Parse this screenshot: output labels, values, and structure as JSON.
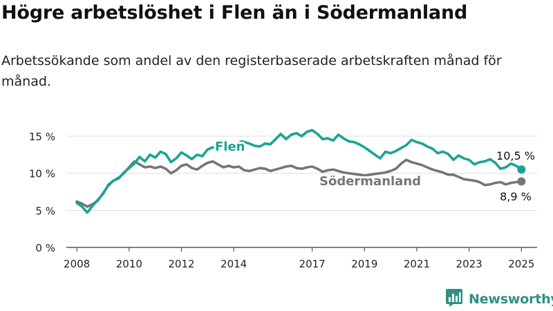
{
  "title": "Högre arbetslöshet i Flen än i Södermanland",
  "subtitle": "Arbetssökande som andel av den registerbaserade arbetskraften månad för månad.",
  "brand": {
    "name": "Newsworthy",
    "icon": "bar-chart-logo-icon"
  },
  "colors": {
    "flen": "#1aa397",
    "sodermanland": "#757575",
    "grid": "#dddddd"
  },
  "chart_data": {
    "type": "line",
    "title": "Högre arbetslöshet i Flen än i Södermanland",
    "ylim": [
      0,
      15
    ],
    "yticks": [
      0,
      5,
      10,
      15
    ],
    "ytick_labels": [
      "0 %",
      "5 %",
      "10 %",
      "15 %"
    ],
    "xlim": [
      2007.6,
      2025.6
    ],
    "xticks": [
      2008,
      2010,
      2012,
      2014,
      2017,
      2019,
      2021,
      2023,
      2025
    ],
    "xtick_labels": [
      "2008",
      "2010",
      "2012",
      "2014",
      "2017",
      "2019",
      "2021",
      "2023",
      "2025"
    ],
    "grid": true,
    "series": [
      {
        "name": "Flen",
        "color": "#1aa397",
        "end_label": "10,5 %",
        "points": [
          [
            2008.0,
            6.0
          ],
          [
            2008.2,
            5.5
          ],
          [
            2008.4,
            4.7
          ],
          [
            2008.6,
            5.6
          ],
          [
            2008.8,
            6.4
          ],
          [
            2009.0,
            7.2
          ],
          [
            2009.2,
            8.4
          ],
          [
            2009.4,
            9.0
          ],
          [
            2009.6,
            9.3
          ],
          [
            2009.8,
            10.1
          ],
          [
            2010.0,
            10.7
          ],
          [
            2010.2,
            11.3
          ],
          [
            2010.4,
            12.2
          ],
          [
            2010.6,
            11.6
          ],
          [
            2010.8,
            12.5
          ],
          [
            2011.0,
            12.1
          ],
          [
            2011.2,
            12.9
          ],
          [
            2011.4,
            12.6
          ],
          [
            2011.6,
            11.5
          ],
          [
            2011.8,
            12.0
          ],
          [
            2012.0,
            12.8
          ],
          [
            2012.2,
            12.4
          ],
          [
            2012.4,
            11.9
          ],
          [
            2012.6,
            12.5
          ],
          [
            2012.8,
            12.3
          ],
          [
            2013.0,
            13.2
          ],
          [
            2013.2,
            13.5
          ],
          [
            2013.4,
            13.2
          ],
          [
            2013.7,
            13.8
          ],
          [
            2014.0,
            13.7
          ],
          [
            2014.3,
            14.3
          ],
          [
            2014.6,
            14.0
          ],
          [
            2014.8,
            13.7
          ],
          [
            2015.0,
            13.6
          ],
          [
            2015.2,
            14.0
          ],
          [
            2015.4,
            13.9
          ],
          [
            2015.6,
            14.6
          ],
          [
            2015.8,
            15.3
          ],
          [
            2016.0,
            14.6
          ],
          [
            2016.2,
            15.2
          ],
          [
            2016.4,
            15.4
          ],
          [
            2016.6,
            15.0
          ],
          [
            2016.8,
            15.6
          ],
          [
            2017.0,
            15.8
          ],
          [
            2017.2,
            15.3
          ],
          [
            2017.4,
            14.6
          ],
          [
            2017.6,
            14.7
          ],
          [
            2017.8,
            14.4
          ],
          [
            2018.0,
            15.2
          ],
          [
            2018.2,
            14.7
          ],
          [
            2018.4,
            14.3
          ],
          [
            2018.6,
            14.2
          ],
          [
            2018.8,
            13.9
          ],
          [
            2019.0,
            13.5
          ],
          [
            2019.2,
            13.0
          ],
          [
            2019.4,
            12.5
          ],
          [
            2019.6,
            12.0
          ],
          [
            2019.8,
            12.9
          ],
          [
            2020.0,
            12.7
          ],
          [
            2020.2,
            13.0
          ],
          [
            2020.4,
            13.4
          ],
          [
            2020.6,
            13.8
          ],
          [
            2020.8,
            14.5
          ],
          [
            2021.0,
            14.2
          ],
          [
            2021.2,
            14.0
          ],
          [
            2021.4,
            13.6
          ],
          [
            2021.6,
            13.3
          ],
          [
            2021.8,
            12.7
          ],
          [
            2022.0,
            12.9
          ],
          [
            2022.2,
            12.6
          ],
          [
            2022.4,
            11.8
          ],
          [
            2022.6,
            12.4
          ],
          [
            2022.8,
            12.0
          ],
          [
            2023.0,
            11.8
          ],
          [
            2023.2,
            11.2
          ],
          [
            2023.4,
            11.5
          ],
          [
            2023.6,
            11.6
          ],
          [
            2023.8,
            11.9
          ],
          [
            2024.0,
            11.4
          ],
          [
            2024.2,
            10.6
          ],
          [
            2024.4,
            10.8
          ],
          [
            2024.6,
            11.3
          ],
          [
            2024.8,
            11.0
          ],
          [
            2025.0,
            10.5
          ]
        ]
      },
      {
        "name": "Södermanland",
        "color": "#757575",
        "end_label": "8,9 %",
        "points": [
          [
            2008.0,
            6.2
          ],
          [
            2008.2,
            5.9
          ],
          [
            2008.4,
            5.5
          ],
          [
            2008.6,
            5.8
          ],
          [
            2008.8,
            6.3
          ],
          [
            2009.0,
            7.3
          ],
          [
            2009.2,
            8.3
          ],
          [
            2009.4,
            9.0
          ],
          [
            2009.6,
            9.4
          ],
          [
            2009.8,
            10.0
          ],
          [
            2010.0,
            10.8
          ],
          [
            2010.2,
            11.6
          ],
          [
            2010.4,
            11.2
          ],
          [
            2010.6,
            10.8
          ],
          [
            2010.8,
            10.9
          ],
          [
            2011.0,
            10.7
          ],
          [
            2011.2,
            10.9
          ],
          [
            2011.4,
            10.6
          ],
          [
            2011.6,
            10.0
          ],
          [
            2011.8,
            10.4
          ],
          [
            2012.0,
            11.0
          ],
          [
            2012.2,
            11.2
          ],
          [
            2012.4,
            10.7
          ],
          [
            2012.6,
            10.5
          ],
          [
            2012.8,
            11.0
          ],
          [
            2013.0,
            11.4
          ],
          [
            2013.2,
            11.6
          ],
          [
            2013.4,
            11.2
          ],
          [
            2013.6,
            10.8
          ],
          [
            2013.8,
            11.0
          ],
          [
            2014.0,
            10.8
          ],
          [
            2014.2,
            10.9
          ],
          [
            2014.4,
            10.4
          ],
          [
            2014.6,
            10.3
          ],
          [
            2014.8,
            10.5
          ],
          [
            2015.0,
            10.7
          ],
          [
            2015.2,
            10.6
          ],
          [
            2015.4,
            10.3
          ],
          [
            2015.6,
            10.5
          ],
          [
            2015.8,
            10.7
          ],
          [
            2016.0,
            10.9
          ],
          [
            2016.2,
            11.0
          ],
          [
            2016.4,
            10.7
          ],
          [
            2016.6,
            10.6
          ],
          [
            2016.8,
            10.8
          ],
          [
            2017.0,
            10.9
          ],
          [
            2017.2,
            10.6
          ],
          [
            2017.4,
            10.2
          ],
          [
            2017.6,
            10.4
          ],
          [
            2017.8,
            10.5
          ],
          [
            2018.0,
            10.3
          ],
          [
            2018.2,
            10.1
          ],
          [
            2018.4,
            10.0
          ],
          [
            2018.6,
            9.9
          ],
          [
            2018.8,
            9.8
          ],
          [
            2019.0,
            9.7
          ],
          [
            2019.2,
            9.8
          ],
          [
            2019.4,
            9.9
          ],
          [
            2019.6,
            10.0
          ],
          [
            2019.8,
            10.1
          ],
          [
            2020.0,
            10.3
          ],
          [
            2020.2,
            10.6
          ],
          [
            2020.4,
            11.3
          ],
          [
            2020.6,
            11.8
          ],
          [
            2020.8,
            11.5
          ],
          [
            2021.0,
            11.3
          ],
          [
            2021.2,
            11.1
          ],
          [
            2021.4,
            10.8
          ],
          [
            2021.6,
            10.5
          ],
          [
            2021.8,
            10.3
          ],
          [
            2022.0,
            10.1
          ],
          [
            2022.2,
            9.8
          ],
          [
            2022.4,
            9.8
          ],
          [
            2022.6,
            9.5
          ],
          [
            2022.8,
            9.2
          ],
          [
            2023.0,
            9.1
          ],
          [
            2023.2,
            9.0
          ],
          [
            2023.4,
            8.8
          ],
          [
            2023.6,
            8.4
          ],
          [
            2023.8,
            8.5
          ],
          [
            2024.0,
            8.7
          ],
          [
            2024.2,
            8.8
          ],
          [
            2024.4,
            8.5
          ],
          [
            2024.6,
            8.7
          ],
          [
            2024.8,
            8.8
          ],
          [
            2025.0,
            8.9
          ]
        ]
      }
    ]
  }
}
